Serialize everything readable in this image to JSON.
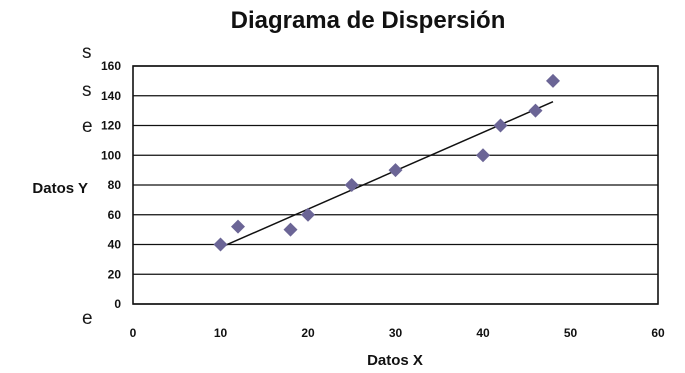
{
  "edge_text_left": [
    "s",
    "s",
    "e",
    "e"
  ],
  "chart_data": {
    "type": "scatter",
    "title": "Diagrama de Dispersión",
    "xlabel": "Datos X",
    "ylabel": "Datos Y",
    "xlim": [
      0,
      60
    ],
    "ylim": [
      0,
      160
    ],
    "xticks": [
      "0",
      "10",
      "20",
      "30",
      "40",
      "50",
      "60"
    ],
    "yticks": [
      "0",
      "20",
      "40",
      "60",
      "80",
      "100",
      "120",
      "140",
      "160"
    ],
    "grid": "horizontal",
    "marker": "diamond",
    "marker_color": "#6b6596",
    "points": [
      {
        "x": 10,
        "y": 40
      },
      {
        "x": 12,
        "y": 52
      },
      {
        "x": 18,
        "y": 50
      },
      {
        "x": 20,
        "y": 60
      },
      {
        "x": 25,
        "y": 80
      },
      {
        "x": 30,
        "y": 90
      },
      {
        "x": 40,
        "y": 100
      },
      {
        "x": 42,
        "y": 120
      },
      {
        "x": 46,
        "y": 130
      },
      {
        "x": 48,
        "y": 150
      }
    ],
    "trendline": {
      "x": [
        10,
        48
      ],
      "y": [
        38,
        136
      ]
    }
  }
}
